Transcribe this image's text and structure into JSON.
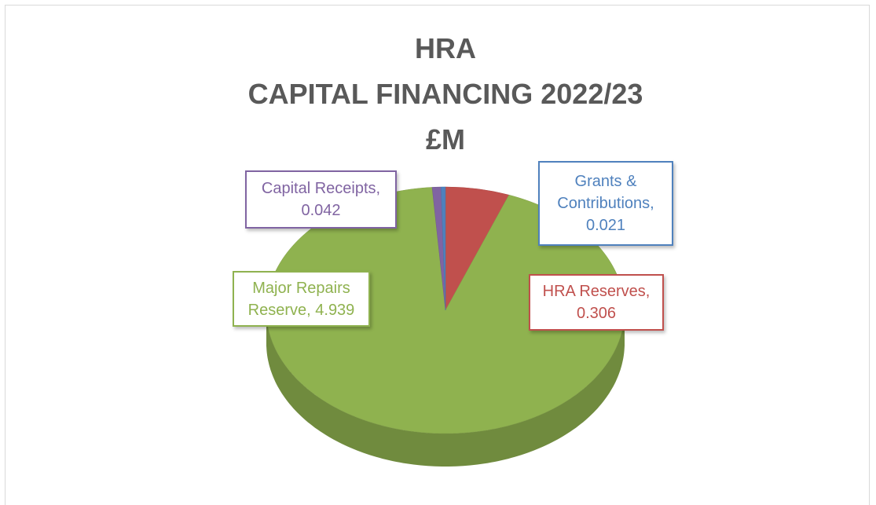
{
  "chart_data": {
    "type": "pie",
    "title": [
      "HRA",
      "CAPITAL FINANCING 2022/23",
      "£M"
    ],
    "categories": [
      "HRA Reserves",
      "Major Repairs Reserve",
      "Capital Receipts",
      "Grants & Contributions"
    ],
    "values": [
      0.306,
      4.939,
      0.042,
      0.021
    ],
    "value_labels": [
      "HRA Reserves, 0.306",
      "Major Repairs Reserve, 4.939",
      "Capital Receipts, 0.042",
      "Grants & Contributions, 0.021"
    ],
    "colors": [
      "#c0504d",
      "#8fb24f",
      "#8064a2",
      "#4f81bd"
    ]
  }
}
